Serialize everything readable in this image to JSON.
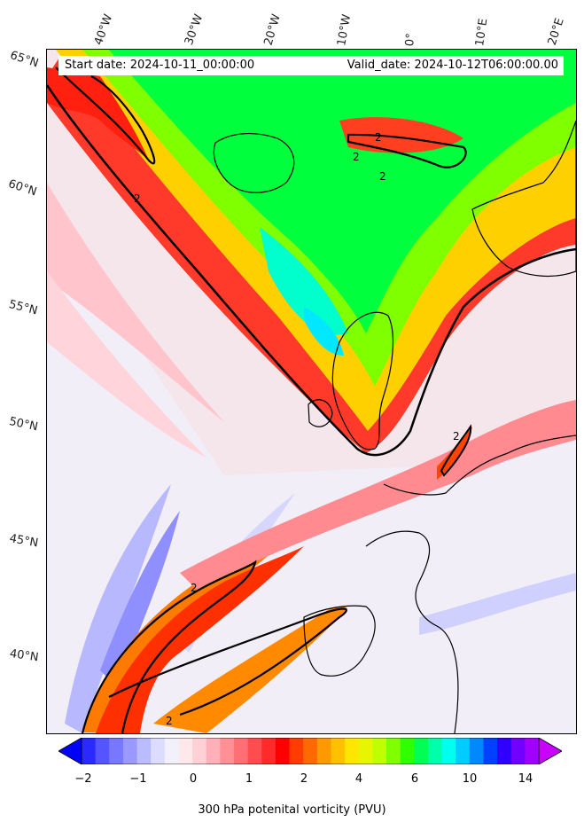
{
  "header": {
    "start_date": "Start date: 2024-10-11_00:00:00",
    "valid_date": "Valid_date: 2024-10-12T06:00:00.00"
  },
  "longitude_labels": [
    "40°W",
    "30°W",
    "20°W",
    "10°W",
    "0°",
    "10°E",
    "20°E"
  ],
  "latitude_labels": [
    "65°N",
    "60°N",
    "55°N",
    "50°N",
    "45°N",
    "40°N"
  ],
  "contour_labels": [
    "2",
    "2",
    "2",
    "2",
    "2",
    "2",
    "2"
  ],
  "colorbar": {
    "label": "300 hPa potenital vorticity (PVU)",
    "ticks": [
      "−2",
      "−1",
      "0",
      "1",
      "2",
      "4",
      "6",
      "10",
      "14"
    ],
    "colors": [
      "#0000ff",
      "#2a2aff",
      "#5555ff",
      "#7777ff",
      "#9999ff",
      "#bbbbff",
      "#dcdcff",
      "#f2f0fa",
      "#ffe8ec",
      "#ffd0d6",
      "#ffb0b8",
      "#ff9096",
      "#ff6f74",
      "#ff4d4f",
      "#ff2a2a",
      "#ff0000",
      "#ff3d00",
      "#ff6a00",
      "#ff9900",
      "#ffc000",
      "#ffe600",
      "#e8f500",
      "#c0ff00",
      "#80ff00",
      "#30ff00",
      "#00ff55",
      "#00ffaa",
      "#00ffee",
      "#00ccff",
      "#0088ff",
      "#0040ff",
      "#3000ff",
      "#7000ff",
      "#a000ff",
      "#c800ff"
    ]
  },
  "colors": {
    "contour_line": "#000000",
    "coastline": "#000000"
  }
}
